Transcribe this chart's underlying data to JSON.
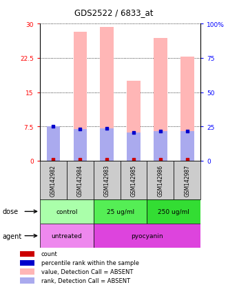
{
  "title": "GDS2522 / 6833_at",
  "samples": [
    "GSM142982",
    "GSM142984",
    "GSM142983",
    "GSM142985",
    "GSM142986",
    "GSM142987"
  ],
  "bar_values": [
    6.5,
    28.2,
    29.3,
    17.5,
    26.8,
    22.8
  ],
  "rank_values": [
    25.0,
    23.0,
    23.5,
    20.5,
    21.5,
    21.5
  ],
  "bar_color": "#FFB6B6",
  "rank_color": "#AAAAEE",
  "count_color": "#CC0000",
  "percentile_color": "#0000CC",
  "ylim_left": [
    0,
    30
  ],
  "ylim_right": [
    0,
    100
  ],
  "yticks_left": [
    0,
    7.5,
    15,
    22.5,
    30
  ],
  "ytick_labels_left": [
    "0",
    "7.5",
    "15",
    "22.5",
    "30"
  ],
  "yticks_right": [
    0,
    25,
    50,
    75,
    100
  ],
  "ytick_labels_right": [
    "0",
    "25",
    "50",
    "75",
    "100%"
  ],
  "dose_groups": [
    {
      "label": "control",
      "start": 0,
      "end": 2,
      "color": "#AAFFAA"
    },
    {
      "label": "25 ug/ml",
      "start": 2,
      "end": 4,
      "color": "#55EE55"
    },
    {
      "label": "250 ug/ml",
      "start": 4,
      "end": 6,
      "color": "#33DD33"
    }
  ],
  "agent_groups": [
    {
      "label": "untreated",
      "start": 0,
      "end": 2,
      "color": "#EE88EE"
    },
    {
      "label": "pyocyanin",
      "start": 2,
      "end": 6,
      "color": "#DD44DD"
    }
  ],
  "legend_items": [
    {
      "label": "count",
      "color": "#CC0000"
    },
    {
      "label": "percentile rank within the sample",
      "color": "#0000CC"
    },
    {
      "label": "value, Detection Call = ABSENT",
      "color": "#FFB6B6"
    },
    {
      "label": "rank, Detection Call = ABSENT",
      "color": "#AAAAEE"
    }
  ]
}
